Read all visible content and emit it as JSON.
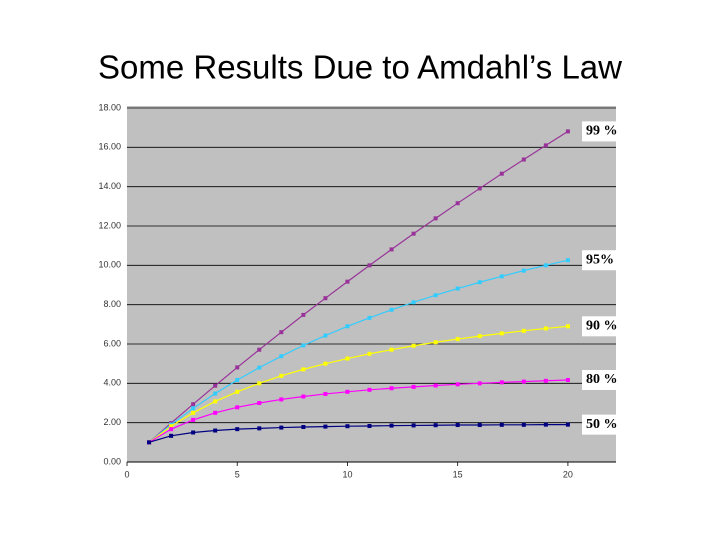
{
  "chart_data": {
    "type": "line",
    "title": "Some Results Due to Amdahl’s Law",
    "x": [
      1,
      2,
      3,
      4,
      5,
      6,
      7,
      8,
      9,
      10,
      11,
      12,
      13,
      14,
      15,
      16,
      17,
      18,
      19,
      20
    ],
    "series": [
      {
        "name": "99 %",
        "color": "#993399",
        "values": [
          1,
          1.98,
          2.94,
          3.88,
          4.81,
          5.71,
          6.6,
          7.48,
          8.33,
          9.17,
          10,
          10.81,
          11.61,
          12.39,
          13.16,
          13.91,
          14.66,
          15.38,
          16.1,
          16.81
        ]
      },
      {
        "name": "95%",
        "color": "#33ccff",
        "values": [
          1,
          1.9,
          2.73,
          3.48,
          4.17,
          4.8,
          5.38,
          5.93,
          6.43,
          6.9,
          7.33,
          7.74,
          8.12,
          8.48,
          8.82,
          9.14,
          9.44,
          9.73,
          10,
          10.26
        ]
      },
      {
        "name": "90 %",
        "color": "#ffff00",
        "values": [
          1,
          1.82,
          2.5,
          3.08,
          3.57,
          4,
          4.38,
          4.71,
          5,
          5.26,
          5.5,
          5.71,
          5.91,
          6.09,
          6.25,
          6.4,
          6.54,
          6.67,
          6.79,
          6.9
        ]
      },
      {
        "name": "80 %",
        "color": "#ff00ff",
        "values": [
          1,
          1.67,
          2.14,
          2.5,
          2.78,
          3,
          3.18,
          3.33,
          3.46,
          3.57,
          3.67,
          3.75,
          3.82,
          3.89,
          3.95,
          4,
          4.05,
          4.09,
          4.13,
          4.17
        ]
      },
      {
        "name": "50 %",
        "color": "#000080",
        "values": [
          1,
          1.33,
          1.5,
          1.6,
          1.67,
          1.71,
          1.75,
          1.78,
          1.8,
          1.82,
          1.83,
          1.85,
          1.86,
          1.87,
          1.88,
          1.88,
          1.89,
          1.89,
          1.9,
          1.9
        ]
      }
    ],
    "xlim": [
      0,
      22
    ],
    "xticks": [
      0,
      5,
      10,
      15,
      20
    ],
    "ylim": [
      0,
      18
    ],
    "yticks": [
      {
        "value": 0,
        "label": "0.00"
      },
      {
        "value": 2,
        "label": "2.00"
      },
      {
        "value": 4,
        "label": "4.00"
      },
      {
        "value": 6,
        "label": "6.00"
      },
      {
        "value": 8,
        "label": "8.00"
      },
      {
        "value": 10,
        "label": "10.00"
      },
      {
        "value": 12,
        "label": "12.00"
      },
      {
        "value": 14,
        "label": "14.00"
      },
      {
        "value": 16,
        "label": "16.00"
      },
      {
        "value": 18,
        "label": "18.00"
      }
    ],
    "grid": true,
    "background": "#c0c0c0"
  }
}
